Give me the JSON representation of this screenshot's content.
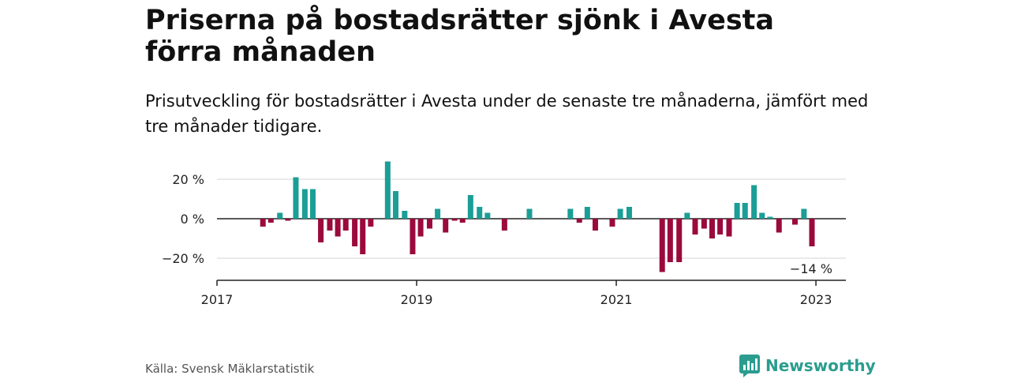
{
  "title": "Priserna på bostadsrätter sjönk i Avesta förra månaden",
  "subtitle": "Prisutveckling för bostadsrätter i Avesta under de senaste tre månaderna, jämfört med tre månader tidigare.",
  "source": "Källa: Svensk Mäklarstatistik",
  "brand": "Newsworthy",
  "colors": {
    "positive": "#1a9e96",
    "negative": "#9b0a3c",
    "brand": "#2a9d8f"
  },
  "chart_data": {
    "type": "bar",
    "y_ticks": [
      {
        "value": 20,
        "label": "20 %"
      },
      {
        "value": 0,
        "label": "0 %"
      },
      {
        "value": -20,
        "label": "−20 %"
      }
    ],
    "x_ticks": [
      {
        "value": 2017,
        "label": "2017"
      },
      {
        "value": 2019,
        "label": "2019"
      },
      {
        "value": 2021,
        "label": "2021"
      },
      {
        "value": 2023,
        "label": "2023"
      }
    ],
    "ylim": [
      -30,
      30
    ],
    "xlim": [
      2017,
      2023.3
    ],
    "grid": true,
    "annotation": {
      "text": "−14 %",
      "x": 2022.96,
      "y": -14
    },
    "x": [
      2017.46,
      2017.54,
      2017.63,
      2017.71,
      2017.79,
      2017.88,
      2017.96,
      2018.04,
      2018.13,
      2018.21,
      2018.29,
      2018.38,
      2018.46,
      2018.54,
      2018.63,
      2018.71,
      2018.79,
      2018.88,
      2018.96,
      2019.04,
      2019.13,
      2019.21,
      2019.29,
      2019.38,
      2019.46,
      2019.54,
      2019.63,
      2019.71,
      2019.79,
      2019.88,
      2019.96,
      2020.04,
      2020.13,
      2020.21,
      2020.29,
      2020.38,
      2020.46,
      2020.54,
      2020.63,
      2020.71,
      2020.79,
      2020.88,
      2020.96,
      2021.04,
      2021.13,
      2021.21,
      2021.29,
      2021.38,
      2021.46,
      2021.54,
      2021.63,
      2021.71,
      2021.79,
      2021.88,
      2021.96,
      2022.04,
      2022.13,
      2022.21,
      2022.29,
      2022.38,
      2022.46,
      2022.54,
      2022.63,
      2022.71,
      2022.79,
      2022.88,
      2022.96
    ],
    "values": [
      -4,
      -2,
      3,
      -1,
      21,
      15,
      15,
      -12,
      -6,
      -9,
      -6,
      -14,
      -18,
      -4,
      0,
      29,
      14,
      4,
      -18,
      -9,
      -5,
      5,
      -7,
      -1,
      -2,
      12,
      6,
      3,
      0,
      -6,
      0,
      0,
      5,
      0,
      0,
      0,
      0,
      5,
      -2,
      6,
      -6,
      0,
      -4,
      5,
      6,
      0,
      0,
      0,
      -27,
      -22,
      -22,
      3,
      -8,
      -5,
      -10,
      -8,
      -9,
      8,
      8,
      17,
      3,
      1,
      -7,
      0,
      -3,
      5,
      -14
    ]
  }
}
